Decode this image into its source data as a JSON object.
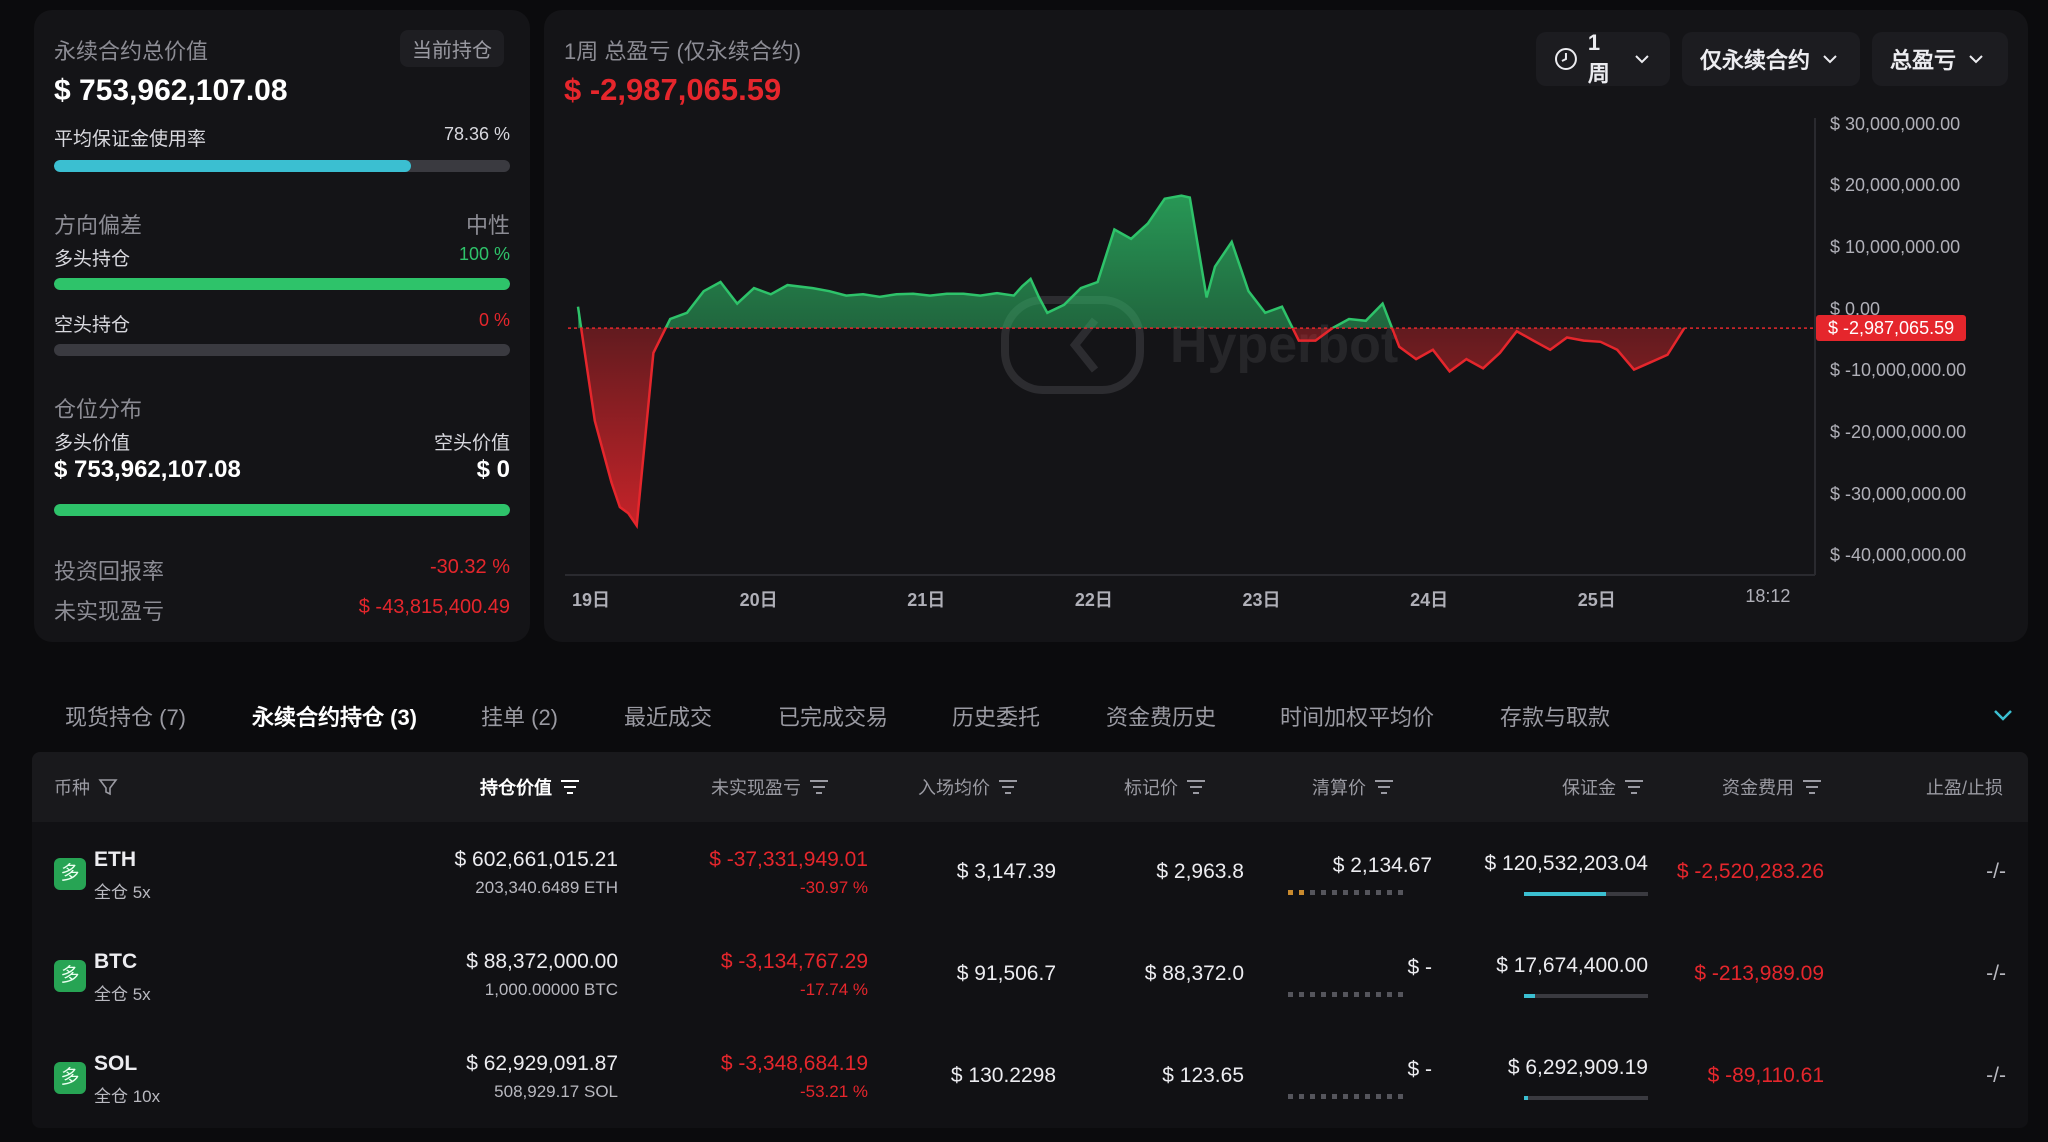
{
  "summary": {
    "total_label": "永续合约总价值",
    "position_pill": "当前持仓",
    "total_value": "$ 753,962,107.08",
    "margin_label": "平均保证金使用率",
    "margin_value": "78.36 %",
    "margin_fraction": 0.7836,
    "bias_label": "方向偏差",
    "bias_value": "中性",
    "long_label": "多头持仓",
    "long_value": "100 %",
    "long_fraction": 1.0,
    "short_label": "空头持仓",
    "short_value": "0 %",
    "short_fraction": 0.0,
    "dist_label": "仓位分布",
    "long_value_label": "多头价值",
    "short_value_label": "空头价值",
    "long_amount": "$ 753,962,107.08",
    "short_amount": "$ 0",
    "dist_long_fraction": 1.0,
    "roi_label": "投资回报率",
    "roi_value": "-30.32 %",
    "unrealized_label": "未实现盈亏",
    "unrealized_value": "$ -43,815,400.49"
  },
  "pnl_panel": {
    "title": "1周 总盈亏 (仅永续合约)",
    "value": "$ -2,987,065.59",
    "period_button": "1周",
    "scope_button": "仅永续合约",
    "metric_button": "总盈亏",
    "watermark": "Hyperbot",
    "current_label": "$ -2,987,065.59",
    "icons": {
      "clock": "clock-icon",
      "chevron": "chevron-down-icon"
    }
  },
  "chart_data": {
    "type": "area",
    "y_ticks": [
      {
        "v": 30000000,
        "label": "$ 30,000,000.00"
      },
      {
        "v": 20000000,
        "label": "$ 20,000,000.00"
      },
      {
        "v": 10000000,
        "label": "$ 10,000,000.00"
      },
      {
        "v": 0,
        "label": "$ 0.00"
      },
      {
        "v": -10000000,
        "label": "$ -10,000,000.00"
      },
      {
        "v": -20000000,
        "label": "$ -20,000,000.00"
      },
      {
        "v": -30000000,
        "label": "$ -30,000,000.00"
      },
      {
        "v": -40000000,
        "label": "$ -40,000,000.00"
      }
    ],
    "x_ticks": [
      {
        "v": 0.3,
        "label": "19日"
      },
      {
        "v": 1.3,
        "label": "20日"
      },
      {
        "v": 2.3,
        "label": "21日"
      },
      {
        "v": 3.3,
        "label": "22日"
      },
      {
        "v": 4.3,
        "label": "23日"
      },
      {
        "v": 5.3,
        "label": "24日"
      },
      {
        "v": 6.3,
        "label": "25日"
      },
      {
        "v": 7.3,
        "label": "18:12"
      }
    ],
    "ylim": [
      -43000000,
      34000000
    ],
    "xlim": [
      0.3,
      7.65
    ],
    "baseline": -2987065.59,
    "positive_color": "#2ec36a",
    "negative_color": "#e5262c",
    "points": [
      [
        0.3,
        0.5
      ],
      [
        0.4,
        -18
      ],
      [
        0.5,
        -28
      ],
      [
        0.55,
        -32
      ],
      [
        0.6,
        -33
      ],
      [
        0.65,
        -35
      ],
      [
        0.75,
        -7
      ],
      [
        0.85,
        -1.5
      ],
      [
        0.95,
        -0.5
      ],
      [
        1.05,
        3
      ],
      [
        1.15,
        4.5
      ],
      [
        1.25,
        1
      ],
      [
        1.35,
        3.5
      ],
      [
        1.45,
        2.5
      ],
      [
        1.55,
        4
      ],
      [
        1.7,
        3.5
      ],
      [
        1.8,
        3
      ],
      [
        1.9,
        2.3
      ],
      [
        2.0,
        2.5
      ],
      [
        2.1,
        2.1
      ],
      [
        2.2,
        2.5
      ],
      [
        2.3,
        2.6
      ],
      [
        2.4,
        2.3
      ],
      [
        2.5,
        2.6
      ],
      [
        2.6,
        2.6
      ],
      [
        2.7,
        2.3
      ],
      [
        2.8,
        2.7
      ],
      [
        2.9,
        2.3
      ],
      [
        2.95,
        3.8
      ],
      [
        3.0,
        5
      ],
      [
        3.05,
        2.0
      ],
      [
        3.1,
        -0.5
      ],
      [
        3.2,
        0.8
      ],
      [
        3.3,
        3.5
      ],
      [
        3.4,
        4.5
      ],
      [
        3.5,
        13
      ],
      [
        3.6,
        11.5
      ],
      [
        3.7,
        14
      ],
      [
        3.8,
        18
      ],
      [
        3.9,
        18.5
      ],
      [
        3.95,
        18.2
      ],
      [
        4.05,
        2
      ],
      [
        4.1,
        7
      ],
      [
        4.2,
        11
      ],
      [
        4.3,
        3
      ],
      [
        4.4,
        -0.5
      ],
      [
        4.5,
        0.5
      ],
      [
        4.6,
        -5
      ],
      [
        4.7,
        -5
      ],
      [
        4.8,
        -3
      ],
      [
        4.9,
        -1.5
      ],
      [
        5.0,
        -1.8
      ],
      [
        5.1,
        1.0
      ],
      [
        5.2,
        -6
      ],
      [
        5.3,
        -8
      ],
      [
        5.4,
        -6.5
      ],
      [
        5.5,
        -10
      ],
      [
        5.6,
        -8
      ],
      [
        5.7,
        -9.5
      ],
      [
        5.8,
        -7
      ],
      [
        5.9,
        -3.5
      ],
      [
        6.0,
        -5
      ],
      [
        6.1,
        -6.5
      ],
      [
        6.2,
        -4.5
      ],
      [
        6.3,
        -5
      ],
      [
        6.4,
        -5.2
      ],
      [
        6.5,
        -6.5
      ],
      [
        6.6,
        -9.7
      ],
      [
        6.7,
        -8.5
      ],
      [
        6.8,
        -7.3
      ],
      [
        6.9,
        -3
      ]
    ],
    "points_unit": "millions"
  },
  "tabs": [
    "现货持仓 (7)",
    "永续合约持仓 (3)",
    "挂单 (2)",
    "最近成交",
    "已完成交易",
    "历史委托",
    "资金费历史",
    "时间加权平均价",
    "存款与取款"
  ],
  "table": {
    "headers": [
      "币种",
      "持仓价值",
      "未实现盈亏",
      "入场均价",
      "标记价",
      "清算价",
      "保证金",
      "资金费用",
      "止盈/止损"
    ],
    "rows": [
      {
        "side": "多",
        "coin": "ETH",
        "mode": "全仓 5x",
        "value": "$ 602,661,015.21",
        "amount": "203,340.6489 ETH",
        "pnl": "$ -37,331,949.01",
        "pnl_pct": "-30.97 %",
        "entry": "$ 3,147.39",
        "mark": "$ 2,963.8",
        "liq": "$ 2,134.67",
        "margin": "$ 120,532,203.04",
        "margin_fraction": 0.66,
        "funding": "$ -2,520,283.26",
        "tpsl": "-/-"
      },
      {
        "side": "多",
        "coin": "BTC",
        "mode": "全仓 5x",
        "value": "$ 88,372,000.00",
        "amount": "1,000.00000 BTC",
        "pnl": "$ -3,134,767.29",
        "pnl_pct": "-17.74 %",
        "entry": "$ 91,506.7",
        "mark": "$ 88,372.0",
        "liq": "$ -",
        "margin": "$ 17,674,400.00",
        "margin_fraction": 0.09,
        "funding": "$ -213,989.09",
        "tpsl": "-/-"
      },
      {
        "side": "多",
        "coin": "SOL",
        "mode": "全仓 10x",
        "value": "$ 62,929,091.87",
        "amount": "508,929.17 SOL",
        "pnl": "$ -3,348,684.19",
        "pnl_pct": "-53.21 %",
        "entry": "$ 130.2298",
        "mark": "$ 123.65",
        "liq": "$ -",
        "margin": "$ 6,292,909.19",
        "margin_fraction": 0.03,
        "funding": "$ -89,110.61",
        "tpsl": "-/-"
      }
    ]
  }
}
